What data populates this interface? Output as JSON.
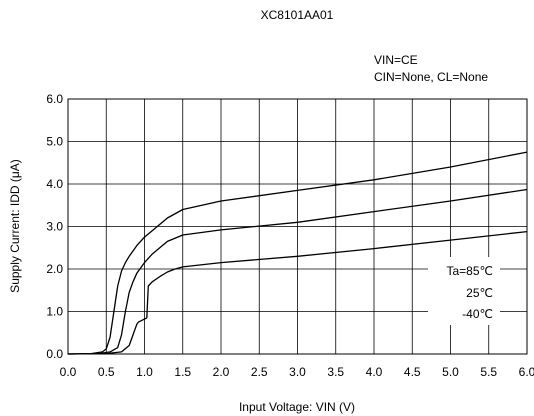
{
  "chart_data": {
    "type": "line",
    "title": "XC8101AA01",
    "conditions": [
      "VIN=CE",
      "CIN=None, CL=None"
    ],
    "xlabel": "Input Voltage: VIN (V)",
    "ylabel": "Supply Current: IDD (μA)",
    "xlim": [
      0,
      6
    ],
    "ylim": [
      0,
      6
    ],
    "xticks": [
      0.0,
      0.5,
      1.0,
      1.5,
      2.0,
      2.5,
      3.0,
      3.5,
      4.0,
      4.5,
      5.0,
      5.5,
      6.0
    ],
    "yticks": [
      0.0,
      1.0,
      2.0,
      3.0,
      4.0,
      5.0,
      6.0
    ],
    "xtick_labels": [
      "0.0",
      "0.5",
      "1.0",
      "1.5",
      "2.0",
      "2.5",
      "3.0",
      "3.5",
      "4.0",
      "4.5",
      "5.0",
      "5.5",
      "6.0"
    ],
    "ytick_labels": [
      "0.0",
      "1.0",
      "2.0",
      "3.0",
      "4.0",
      "5.0",
      "6.0"
    ],
    "grid": true,
    "series": [
      {
        "name": "Ta=85℃",
        "x": [
          0,
          0.3,
          0.45,
          0.5,
          0.55,
          0.6,
          0.65,
          0.7,
          0.75,
          0.8,
          0.9,
          1.0,
          1.1,
          1.2,
          1.3,
          1.5,
          2.0,
          3.0,
          4.0,
          5.0,
          6.0
        ],
        "y": [
          0,
          0.01,
          0.05,
          0.12,
          0.4,
          1.0,
          1.6,
          1.95,
          2.15,
          2.3,
          2.55,
          2.75,
          2.9,
          3.05,
          3.2,
          3.4,
          3.6,
          3.85,
          4.1,
          4.4,
          4.75
        ]
      },
      {
        "name": "25℃",
        "x": [
          0,
          0.4,
          0.55,
          0.65,
          0.7,
          0.75,
          0.8,
          0.85,
          0.9,
          1.0,
          1.1,
          1.2,
          1.3,
          1.5,
          2.0,
          3.0,
          4.0,
          5.0,
          6.0
        ],
        "y": [
          0,
          0.01,
          0.05,
          0.15,
          0.45,
          1.0,
          1.45,
          1.7,
          1.9,
          2.15,
          2.35,
          2.5,
          2.65,
          2.8,
          2.92,
          3.1,
          3.35,
          3.6,
          3.87
        ]
      },
      {
        "name": "-40℃",
        "x": [
          0,
          0.5,
          0.7,
          0.8,
          0.85,
          0.9,
          0.92,
          0.95,
          1.0,
          1.03,
          1.05,
          1.1,
          1.2,
          1.3,
          1.4,
          1.5,
          2.0,
          3.0,
          4.0,
          5.0,
          6.0
        ],
        "y": [
          0,
          0.01,
          0.05,
          0.2,
          0.45,
          0.7,
          0.75,
          0.78,
          0.82,
          0.85,
          1.6,
          1.7,
          1.82,
          1.93,
          2.0,
          2.05,
          2.15,
          2.3,
          2.48,
          2.68,
          2.88
        ]
      }
    ],
    "legend_labels": [
      "Ta=85℃",
      "25℃",
      "-40℃"
    ],
    "legend_placement": "inside-bottom-right"
  }
}
